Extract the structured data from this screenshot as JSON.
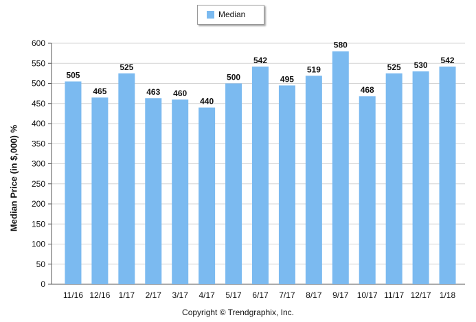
{
  "chart_data": {
    "type": "bar",
    "legend": [
      "Median"
    ],
    "legend_placement": "top-center",
    "series": [
      {
        "name": "Median",
        "values": [
          505,
          465,
          525,
          463,
          460,
          440,
          500,
          542,
          495,
          519,
          580,
          468,
          525,
          530,
          542
        ]
      }
    ],
    "categories": [
      "11/16",
      "12/16",
      "1/17",
      "2/17",
      "3/17",
      "4/17",
      "5/17",
      "6/17",
      "7/17",
      "8/17",
      "9/17",
      "10/17",
      "11/17",
      "12/17",
      "1/18"
    ],
    "data_labels": [
      "505",
      "465",
      "525",
      "463",
      "460",
      "440",
      "500",
      "542",
      "495",
      "519",
      "580",
      "468",
      "525",
      "530",
      "542"
    ],
    "ylabel": "Median Price (in $,000) %",
    "xlabel": "",
    "ylim": [
      0,
      600
    ],
    "yticks": [
      "0",
      "50",
      "100",
      "150",
      "200",
      "250",
      "300",
      "350",
      "400",
      "450",
      "500",
      "550",
      "600"
    ],
    "grid": true,
    "bar_color": "#7bbaf0"
  },
  "footer": {
    "copyright": "Copyright © Trendgraphix, Inc."
  }
}
